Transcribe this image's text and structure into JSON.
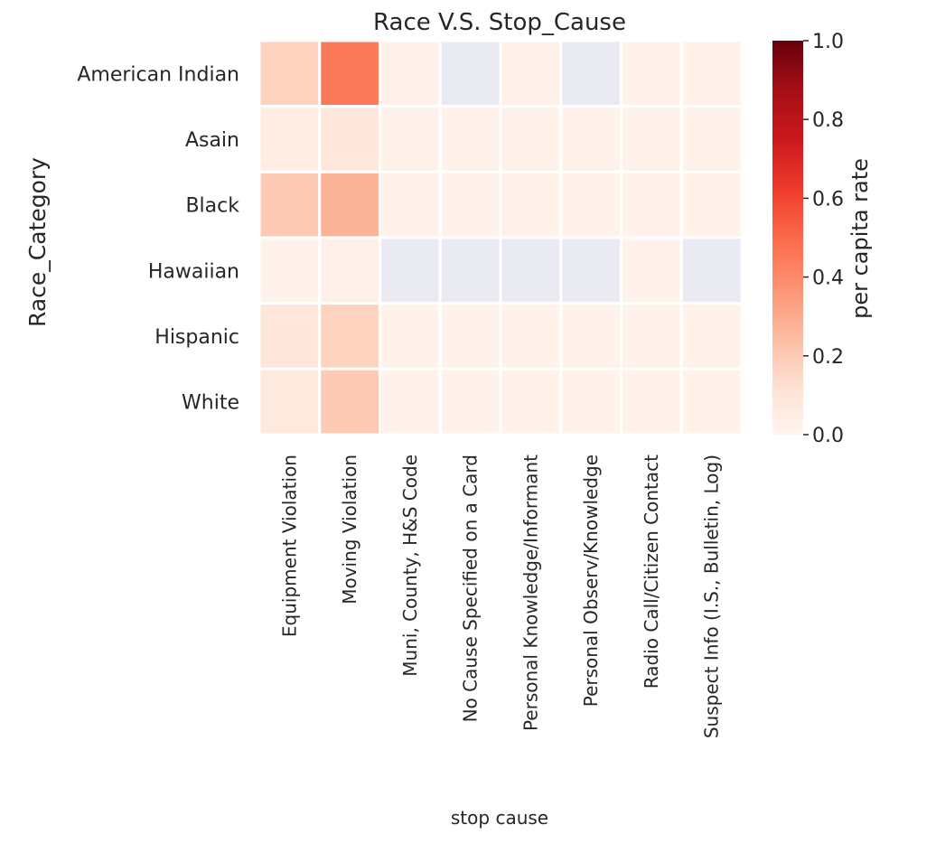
{
  "chart_data": {
    "type": "heatmap",
    "title": "Race V.S. Stop_Cause",
    "xlabel": "stop cause",
    "ylabel": "Race_Category",
    "x_categories": [
      "Equipment Violation",
      "Moving Violation",
      "Muni, County, H&S Code",
      "No Cause Specified on a Card",
      "Personal Knowledge/Informant",
      "Personal Observ/Knowledge",
      "Radio Call/Citizen Contact",
      "Suspect Info (I.S., Bulletin, Log)"
    ],
    "y_categories": [
      "American Indian",
      "Asain",
      "Black",
      "Hawaiian",
      "Hispanic",
      "White"
    ],
    "values": [
      [
        0.17,
        0.45,
        0.02,
        null,
        0.03,
        null,
        0.02,
        0.02
      ],
      [
        0.05,
        0.09,
        0.02,
        0.02,
        0.02,
        0.02,
        0.02,
        0.02
      ],
      [
        0.2,
        0.27,
        0.02,
        0.02,
        0.02,
        0.02,
        0.02,
        0.02
      ],
      [
        0.02,
        0.03,
        null,
        null,
        null,
        null,
        0.02,
        null
      ],
      [
        0.09,
        0.17,
        0.02,
        0.02,
        0.02,
        0.02,
        0.02,
        0.02
      ],
      [
        0.07,
        0.2,
        0.02,
        0.02,
        0.02,
        0.02,
        0.02,
        0.02
      ]
    ],
    "missing_color": "#EAEAF2",
    "colorbar": {
      "label": "per capita rate",
      "range": [
        0.0,
        1.0
      ],
      "ticks": [
        "0.0",
        "0.2",
        "0.4",
        "0.6",
        "0.8",
        "1.0"
      ],
      "colormap": "Reds"
    },
    "grid": false
  }
}
